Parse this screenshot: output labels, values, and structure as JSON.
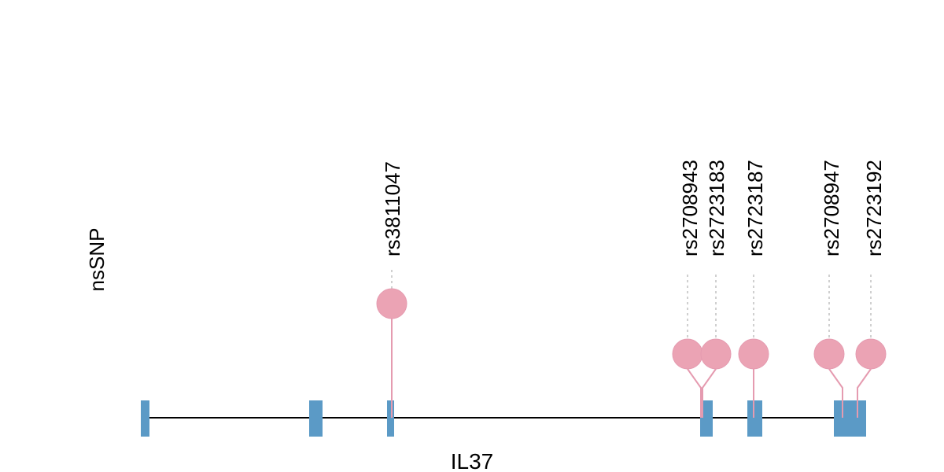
{
  "track_label": "nsSNP",
  "gene_label": "IL37",
  "colors": {
    "exon": "#5b9ac6",
    "snp": "#eba3b4",
    "stem": "#e59bb0",
    "backbone": "#000000",
    "guide": "#c0c0c0"
  },
  "snps": [
    {
      "id": "rs3811047",
      "raised": true
    },
    {
      "id": "rs2708943",
      "raised": false
    },
    {
      "id": "rs2723183",
      "raised": false
    },
    {
      "id": "rs2723187",
      "raised": false
    },
    {
      "id": "rs2708947",
      "raised": false
    },
    {
      "id": "rs2723192",
      "raised": false
    }
  ]
}
